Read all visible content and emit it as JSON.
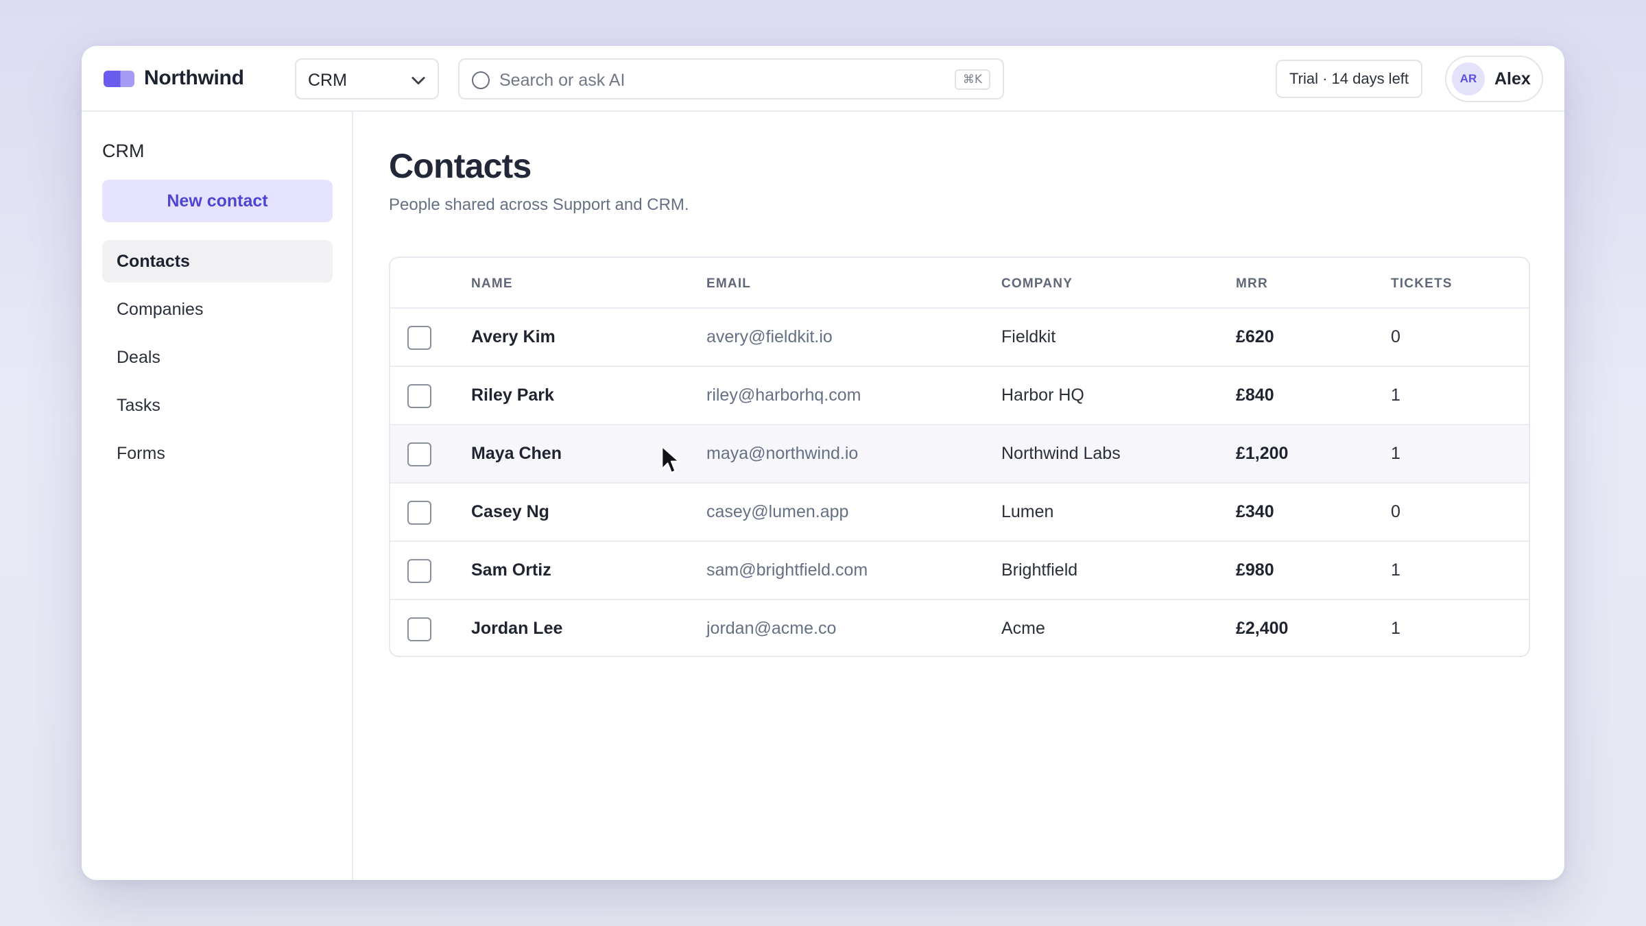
{
  "header": {
    "brand": "Northwind",
    "app_select": {
      "value": "CRM"
    },
    "search": {
      "placeholder": "Search or ask AI",
      "shortcut": "⌘K"
    },
    "trial_badge": "Trial · 14 days left",
    "user": {
      "initials": "AR",
      "name": "Alex"
    }
  },
  "sidebar": {
    "section_title": "CRM",
    "new_button": "New contact",
    "items": [
      {
        "label": "Contacts",
        "active": true
      },
      {
        "label": "Companies",
        "active": false
      },
      {
        "label": "Deals",
        "active": false
      },
      {
        "label": "Tasks",
        "active": false
      },
      {
        "label": "Forms",
        "active": false
      }
    ]
  },
  "main": {
    "title": "Contacts",
    "subtitle": "People shared across Support and CRM.",
    "table": {
      "columns": [
        "NAME",
        "EMAIL",
        "COMPANY",
        "MRR",
        "TICKETS"
      ],
      "rows": [
        {
          "name": "Avery Kim",
          "email": "avery@fieldkit.io",
          "company": "Fieldkit",
          "mrr": "£620",
          "tickets": "0",
          "checked": false
        },
        {
          "name": "Riley Park",
          "email": "riley@harborhq.com",
          "company": "Harbor HQ",
          "mrr": "£840",
          "tickets": "1",
          "checked": false
        },
        {
          "name": "Maya Chen",
          "email": "maya@northwind.io",
          "company": "Northwind Labs",
          "mrr": "£1,200",
          "tickets": "1",
          "checked": false
        },
        {
          "name": "Casey Ng",
          "email": "casey@lumen.app",
          "company": "Lumen",
          "mrr": "£340",
          "tickets": "0",
          "checked": false
        },
        {
          "name": "Sam Ortiz",
          "email": "sam@brightfield.com",
          "company": "Brightfield",
          "mrr": "£980",
          "tickets": "1",
          "checked": false
        },
        {
          "name": "Jordan Lee",
          "email": "jordan@acme.co",
          "company": "Acme",
          "mrr": "£2,400",
          "tickets": "1",
          "checked": false
        }
      ]
    }
  },
  "colors": {
    "accent": "#5b4ee0",
    "accent_soft": "#e5e3fd",
    "text": "#1f2430",
    "muted": "#667085",
    "border": "#ebecf1"
  },
  "icons": {
    "logo": "northwind-logo-icon",
    "select_chevron": "chevron-down-icon",
    "search": "search-icon",
    "cursor": "mouse-pointer-icon"
  }
}
